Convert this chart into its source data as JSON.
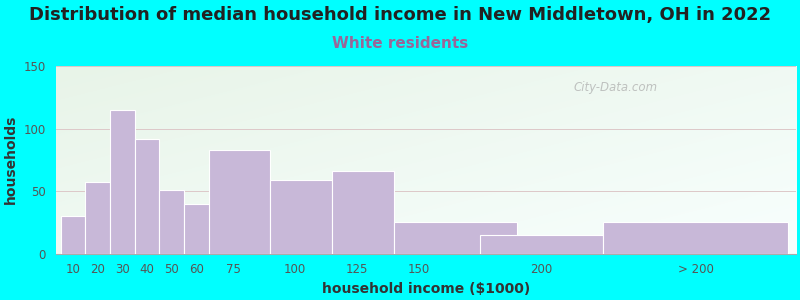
{
  "title": "Distribution of median household income in New Middletown, OH in 2022",
  "subtitle": "White residents",
  "xlabel": "household income ($1000)",
  "ylabel": "households",
  "bar_values": [
    30,
    57,
    115,
    92,
    51,
    40,
    83,
    59,
    66,
    25,
    15,
    25
  ],
  "bar_widths": [
    10,
    10,
    10,
    10,
    10,
    15,
    25,
    25,
    25,
    50,
    50,
    75
  ],
  "bar_lefts": [
    5,
    15,
    25,
    35,
    45,
    55,
    65,
    90,
    115,
    140,
    175,
    225
  ],
  "bar_color": "#c8b8d8",
  "ylim": [
    0,
    150
  ],
  "yticks": [
    0,
    50,
    100,
    150
  ],
  "bg_color": "#00ffff",
  "plot_bg_top_left": "#e8f4e8",
  "plot_bg_bottom_right": "#f8fffe",
  "title_fontsize": 13,
  "subtitle_fontsize": 11,
  "subtitle_color": "#996699",
  "axis_label_fontsize": 10,
  "tick_label_color": "#555555",
  "title_color": "#222222",
  "watermark_text": "City-Data.com",
  "grid_color": "#ddc8c8",
  "xlim_left": 3,
  "xlim_right": 303
}
